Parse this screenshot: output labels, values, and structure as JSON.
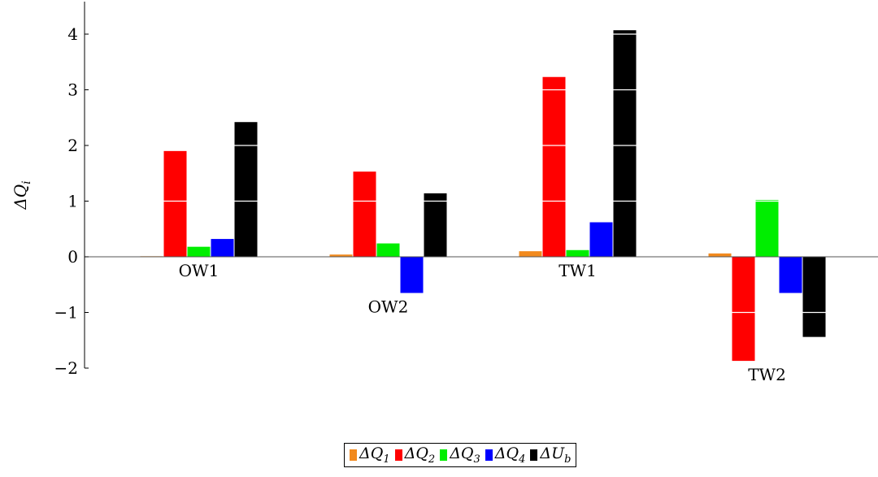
{
  "chart_data": {
    "type": "bar",
    "title": "",
    "xlabel": "",
    "ylabel": "ΔQ",
    "ylabel_subscript": "i",
    "categories": [
      "OW1",
      "OW2",
      "TW1",
      "TW2"
    ],
    "series": [
      {
        "name": "ΔQ",
        "sub": "1",
        "color": "#f28a1e",
        "values": [
          0.01,
          0.04,
          0.1,
          0.06
        ]
      },
      {
        "name": "ΔQ",
        "sub": "2",
        "color": "#ff0000",
        "values": [
          1.9,
          1.53,
          3.23,
          -1.87
        ]
      },
      {
        "name": "ΔQ",
        "sub": "3",
        "color": "#00ee00",
        "values": [
          0.18,
          0.24,
          0.12,
          1.02
        ]
      },
      {
        "name": "ΔQ",
        "sub": "4",
        "color": "#0000ff",
        "values": [
          0.32,
          -0.65,
          0.62,
          -0.65
        ]
      },
      {
        "name": "ΔU",
        "sub": "b",
        "color": "#000000",
        "values": [
          2.42,
          1.14,
          4.07,
          -1.44
        ]
      }
    ],
    "yticks": [
      -2,
      -1,
      0,
      1,
      2,
      3,
      4
    ],
    "ytick_labels": [
      "−2",
      "−1",
      "0",
      "1",
      "2",
      "3",
      "4"
    ],
    "ylim": [
      -2,
      4.6
    ],
    "grid": "white lines inside bars at integer values",
    "legend_position": "bottom-center"
  }
}
